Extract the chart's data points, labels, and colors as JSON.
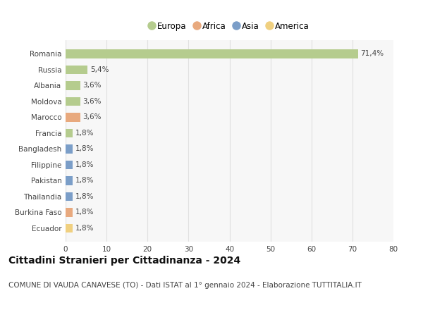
{
  "categories": [
    "Romania",
    "Russia",
    "Albania",
    "Moldova",
    "Marocco",
    "Francia",
    "Bangladesh",
    "Filippine",
    "Pakistan",
    "Thailandia",
    "Burkina Faso",
    "Ecuador"
  ],
  "values": [
    71.4,
    5.4,
    3.6,
    3.6,
    3.6,
    1.8,
    1.8,
    1.8,
    1.8,
    1.8,
    1.8,
    1.8
  ],
  "labels": [
    "71,4%",
    "5,4%",
    "3,6%",
    "3,6%",
    "3,6%",
    "1,8%",
    "1,8%",
    "1,8%",
    "1,8%",
    "1,8%",
    "1,8%",
    "1,8%"
  ],
  "bar_colors": [
    "#b5cc8e",
    "#b5cc8e",
    "#b5cc8e",
    "#b5cc8e",
    "#e8a97e",
    "#b5cc8e",
    "#7b9ec8",
    "#7b9ec8",
    "#7b9ec8",
    "#7b9ec8",
    "#e8a97e",
    "#f0d080"
  ],
  "legend_labels": [
    "Europa",
    "Africa",
    "Asia",
    "America"
  ],
  "legend_colors": [
    "#b5cc8e",
    "#e8a97e",
    "#7b9ec8",
    "#f0d080"
  ],
  "xlim": [
    0,
    80
  ],
  "xticks": [
    0,
    10,
    20,
    30,
    40,
    50,
    60,
    70,
    80
  ],
  "title": "Cittadini Stranieri per Cittadinanza - 2024",
  "subtitle": "COMUNE DI VAUDA CANAVESE (TO) - Dati ISTAT al 1° gennaio 2024 - Elaborazione TUTTITALIA.IT",
  "title_fontsize": 10,
  "subtitle_fontsize": 7.5,
  "label_fontsize": 7.5,
  "tick_fontsize": 7.5,
  "legend_fontsize": 8.5,
  "background_color": "#ffffff",
  "plot_bg_color": "#f7f7f7",
  "grid_color": "#e0e0e0",
  "bar_alpha": 1.0,
  "bar_height": 0.55
}
